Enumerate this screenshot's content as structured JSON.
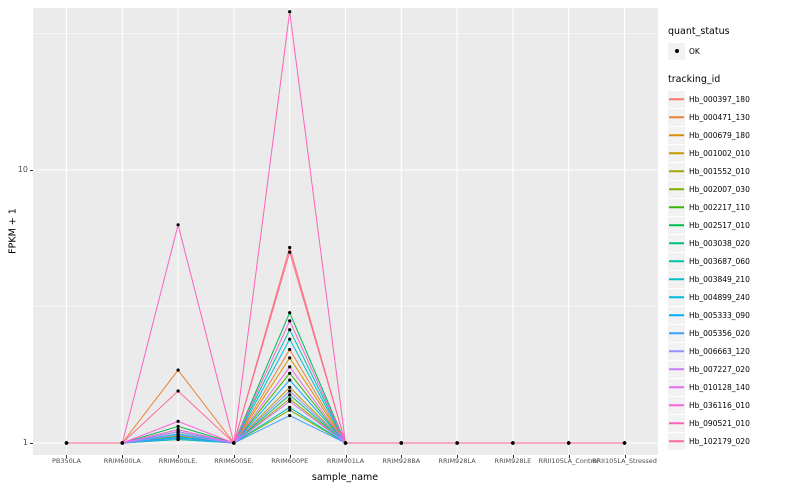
{
  "legend": {
    "quant_status_title": "quant_status",
    "quant_status_entries": [
      {
        "label": "OK",
        "symbol": "point"
      }
    ],
    "tracking_id_title": "tracking_id"
  },
  "chart_data": {
    "type": "line",
    "title": "",
    "xlabel": "sample_name",
    "ylabel": "FPKM + 1",
    "y_scale": "log10",
    "y_ticks": [
      1,
      10
    ],
    "ylim": [
      0.95,
      42
    ],
    "grid": "on",
    "panel_background": "#EBEBEB",
    "gridline_color": "#FFFFFF",
    "point_color": "#000000",
    "legend_position": "right",
    "categories": [
      "PB350LA",
      "RRIM600LA",
      "RRIM600LE.",
      "RRIM600SE.",
      "RRIM600PE",
      "RRIM901LA",
      "RRIM928BA",
      "RRIM928LA",
      "RRIM928LE",
      "RRII105LA_Control",
      "RRII105LA_Stressed"
    ],
    "series": [
      {
        "name": "Hb_000397_180",
        "color": "#F8766D",
        "values": [
          1,
          1,
          1.06,
          1,
          5.2,
          1,
          1,
          1,
          1,
          1,
          1
        ]
      },
      {
        "name": "Hb_000471_130",
        "color": "#EA8331",
        "values": [
          1,
          1,
          1.85,
          1,
          2.2,
          1,
          1,
          1,
          1,
          1,
          1
        ]
      },
      {
        "name": "Hb_000679_180",
        "color": "#D89000",
        "values": [
          1,
          1,
          1.12,
          1,
          2.05,
          1,
          1,
          1,
          1,
          1,
          1
        ]
      },
      {
        "name": "Hb_001002_010",
        "color": "#C09B00",
        "values": [
          1,
          1,
          1.05,
          1,
          1.6,
          1,
          1,
          1,
          1,
          1,
          1
        ]
      },
      {
        "name": "Hb_001552_010",
        "color": "#A3A500",
        "values": [
          1,
          1,
          1.03,
          1,
          1.45,
          1,
          1,
          1,
          1,
          1,
          1
        ]
      },
      {
        "name": "Hb_002007_030",
        "color": "#7CAE00",
        "values": [
          1,
          1,
          1.06,
          1,
          1.32,
          1,
          1,
          1,
          1,
          1,
          1
        ]
      },
      {
        "name": "Hb_002217_110",
        "color": "#39B600",
        "values": [
          1,
          1,
          1.1,
          1,
          1.8,
          1,
          1,
          1,
          1,
          1,
          1
        ]
      },
      {
        "name": "Hb_002517_010",
        "color": "#00BB4E",
        "values": [
          1,
          1,
          1.15,
          1,
          3.0,
          1,
          1,
          1,
          1,
          1,
          1
        ]
      },
      {
        "name": "Hb_003038_020",
        "color": "#00BF7D",
        "values": [
          1,
          1,
          1.05,
          1,
          1.5,
          1,
          1,
          1,
          1,
          1,
          1
        ]
      },
      {
        "name": "Hb_003687_060",
        "color": "#00C1A3",
        "values": [
          1,
          1,
          1.1,
          1,
          2.6,
          1,
          1,
          1,
          1,
          1,
          1
        ]
      },
      {
        "name": "Hb_003849_210",
        "color": "#00BFC4",
        "values": [
          1,
          1,
          1.03,
          1,
          1.35,
          1,
          1,
          1,
          1,
          1,
          1
        ]
      },
      {
        "name": "Hb_004899_240",
        "color": "#00BAE0",
        "values": [
          1,
          1,
          1.08,
          1,
          2.4,
          1,
          1,
          1,
          1,
          1,
          1
        ]
      },
      {
        "name": "Hb_005333_090",
        "color": "#00B0F6",
        "values": [
          1,
          1,
          1.05,
          1,
          1.7,
          1,
          1,
          1,
          1,
          1,
          1
        ]
      },
      {
        "name": "Hb_005356_020",
        "color": "#35A2FF",
        "values": [
          1,
          1,
          1.04,
          1,
          1.26,
          1,
          1,
          1,
          1,
          1,
          1
        ]
      },
      {
        "name": "Hb_006663_120",
        "color": "#9590FF",
        "values": [
          1,
          1,
          1.07,
          1,
          1.55,
          1,
          1,
          1,
          1,
          1,
          1
        ]
      },
      {
        "name": "Hb_007227_020",
        "color": "#C77CFF",
        "values": [
          1,
          1,
          1.1,
          1,
          1.42,
          1,
          1,
          1,
          1,
          1,
          1
        ]
      },
      {
        "name": "Hb_010128_140",
        "color": "#E76BF3",
        "values": [
          1,
          1,
          1.12,
          1,
          1.9,
          1,
          1,
          1,
          1,
          1,
          1
        ]
      },
      {
        "name": "Hb_036116_010",
        "color": "#FA62DB",
        "values": [
          1,
          1,
          1.2,
          1,
          2.8,
          1,
          1,
          1,
          1,
          1,
          1
        ]
      },
      {
        "name": "Hb_090521_010",
        "color": "#FF62BC",
        "values": [
          1,
          1,
          6.3,
          1,
          38,
          1,
          1,
          1,
          1,
          1,
          1
        ]
      },
      {
        "name": "Hb_102179_020",
        "color": "#FF6A98",
        "values": [
          1,
          1,
          1.55,
          1,
          5.0,
          1,
          1,
          1,
          1,
          1,
          1
        ]
      }
    ]
  }
}
